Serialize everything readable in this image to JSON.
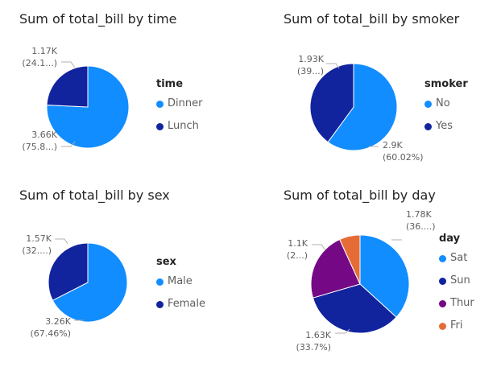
{
  "chart_data": [
    {
      "type": "pie",
      "title": "Sum of total_bill by time",
      "legend_title": "time",
      "legend_position": "right",
      "slices": [
        {
          "name": "Dinner",
          "value": 3.66,
          "label": "3.66K",
          "pct_label": "(75.8...)",
          "color": "#118DFF"
        },
        {
          "name": "Lunch",
          "value": 1.17,
          "label": "1.17K",
          "pct_label": "(24.1...)",
          "color": "#12239E"
        }
      ]
    },
    {
      "type": "pie",
      "title": "Sum of total_bill by smoker",
      "legend_title": "smoker",
      "legend_position": "right",
      "slices": [
        {
          "name": "No",
          "value": 2.9,
          "label": "2.9K",
          "pct_label": "(60.02%)",
          "color": "#118DFF"
        },
        {
          "name": "Yes",
          "value": 1.93,
          "label": "1.93K",
          "pct_label": "(39...)",
          "color": "#12239E"
        }
      ]
    },
    {
      "type": "pie",
      "title": "Sum of total_bill by sex",
      "legend_title": "sex",
      "legend_position": "right",
      "slices": [
        {
          "name": "Male",
          "value": 3.26,
          "label": "3.26K",
          "pct_label": "(67.46%)",
          "color": "#118DFF"
        },
        {
          "name": "Female",
          "value": 1.57,
          "label": "1.57K",
          "pct_label": "(32....)",
          "color": "#12239E"
        }
      ]
    },
    {
      "type": "pie",
      "title": "Sum of total_bill by day",
      "legend_title": "day",
      "legend_position": "right",
      "slices": [
        {
          "name": "Sat",
          "value": 1.78,
          "label": "1.78K",
          "pct_label": "(36....)",
          "color": "#118DFF"
        },
        {
          "name": "Sun",
          "value": 1.63,
          "label": "1.63K",
          "pct_label": "(33.7%)",
          "color": "#12239E"
        },
        {
          "name": "Thur",
          "value": 1.1,
          "label": "1.1K",
          "pct_label": "(2...)",
          "color": "#750985"
        },
        {
          "name": "Fri",
          "value": 0.33,
          "label": "",
          "pct_label": "",
          "color": "#E66C37"
        }
      ]
    }
  ]
}
